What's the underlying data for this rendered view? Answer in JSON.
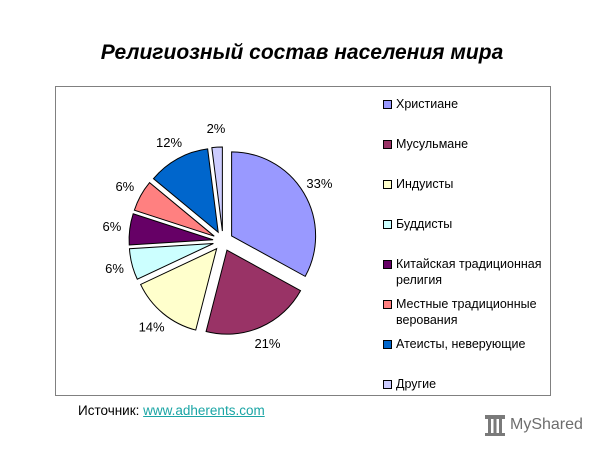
{
  "chart_data": {
    "type": "pie",
    "title": "Религиозный состав населения мира",
    "categories": [
      "Христиане",
      "Мусульмане",
      "Индуисты",
      "Буддисты",
      "Китайская традиционная религия",
      "Местные традиционные верования",
      "Атеисты, неверующие",
      "Другие"
    ],
    "values": [
      33,
      21,
      14,
      6,
      6,
      6,
      12,
      2
    ],
    "value_labels": [
      "33%",
      "21%",
      "14%",
      "6%",
      "6%",
      "6%",
      "12%",
      "2%"
    ],
    "colors": [
      "#9999ff",
      "#993366",
      "#ffffcc",
      "#ccffff",
      "#660066",
      "#ff8080",
      "#0066cc",
      "#ccccff"
    ],
    "exploded": true,
    "legend_position": "right"
  },
  "legend": {
    "items": [
      "Христиане",
      "Мусульмане",
      "Индуисты",
      "Буддисты",
      "Китайская традиционная религия",
      "Местные традиционные верования",
      "Атеисты, неверующие",
      "Другие"
    ]
  },
  "source": {
    "label": "Источник: ",
    "link_text": "www.adherents.com"
  },
  "watermark": {
    "text": "MyShared",
    "icon": "myshared-logo-icon"
  }
}
